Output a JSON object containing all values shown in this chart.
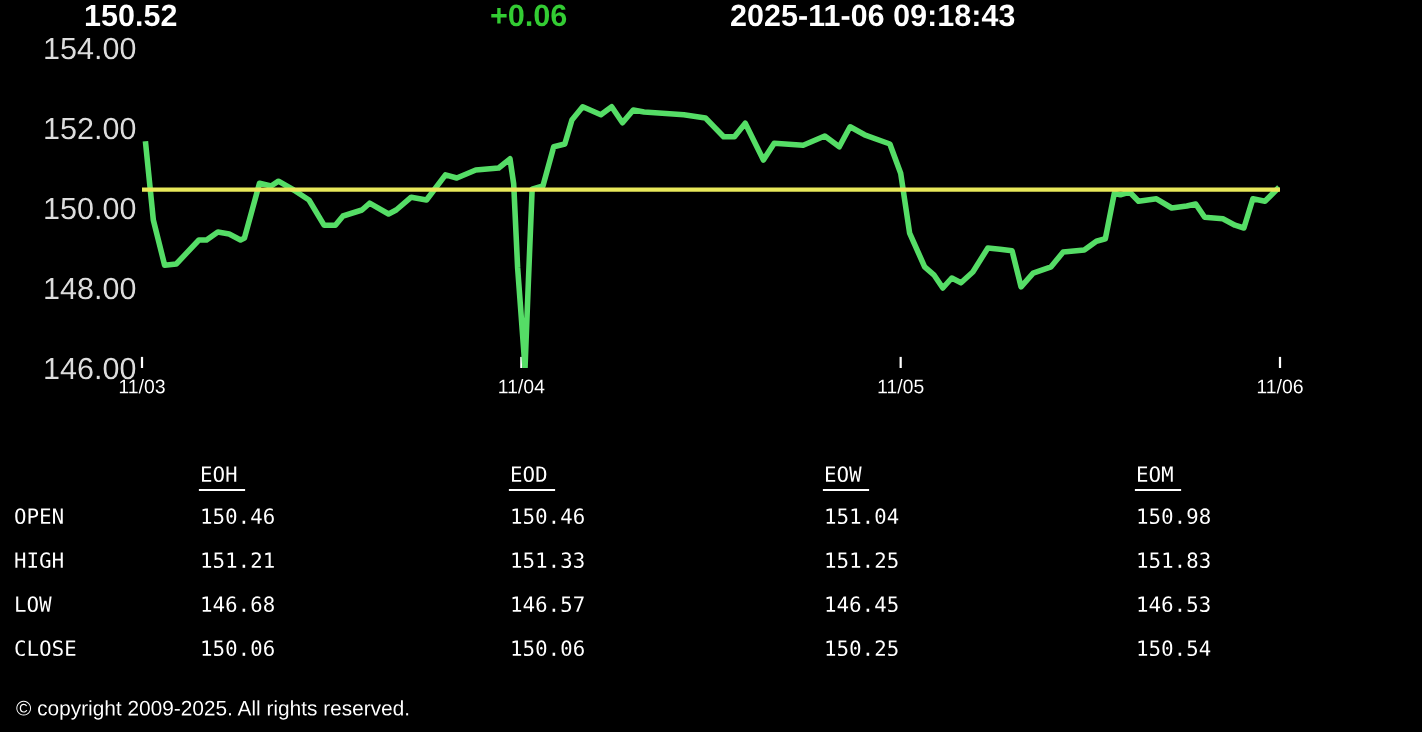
{
  "chart_data": [
    {
      "type": "line",
      "title": "150.52",
      "subtitle": "2025-11-06 09:18:43",
      "annotations": [
        "+0.06",
        "© copyright 2009-2025. All rights reserved."
      ],
      "x": [
        "2025-11-03T00:14",
        "2025-11-03T00:43",
        "2025-11-03T01:26",
        "2025-11-03T02:10",
        "2025-11-03T03:36",
        "2025-11-03T04:05",
        "2025-11-03T04:48",
        "2025-11-03T05:31",
        "2025-11-03T06:14",
        "2025-11-03T06:29",
        "2025-11-03T07:26",
        "2025-11-03T08:10",
        "2025-11-03T08:38",
        "2025-11-03T09:36",
        "2025-11-03T10:34",
        "2025-11-03T11:31",
        "2025-11-03T12:14",
        "2025-11-03T12:43",
        "2025-11-03T13:55",
        "2025-11-03T14:24",
        "2025-11-03T15:36",
        "2025-11-03T16:05",
        "2025-11-03T17:02",
        "2025-11-03T18:00",
        "2025-11-03T19:12",
        "2025-11-03T19:55",
        "2025-11-03T21:07",
        "2025-11-03T22:34",
        "2025-11-03T23:17",
        "2025-11-03T23:31",
        "2025-11-03T23:46",
        "2025-11-04T00:14",
        "2025-11-04T00:27",
        "2025-11-04T00:41",
        "2025-11-04T01:22",
        "2025-11-04T02:03",
        "2025-11-04T02:45",
        "2025-11-04T03:12",
        "2025-11-04T03:53",
        "2025-11-04T05:02",
        "2025-11-04T05:43",
        "2025-11-04T06:24",
        "2025-11-04T07:05",
        "2025-11-04T07:46",
        "2025-11-04T08:55",
        "2025-11-04T10:17",
        "2025-11-04T11:39",
        "2025-11-04T12:48",
        "2025-11-04T13:29",
        "2025-11-04T14:10",
        "2025-11-04T15:19",
        "2025-11-04T16:00",
        "2025-11-04T17:50",
        "2025-11-04T19:12",
        "2025-11-04T20:07",
        "2025-11-04T20:48",
        "2025-11-04T21:43",
        "2025-11-04T23:19",
        "2025-11-05T00:00",
        "2025-11-05T00:34",
        "2025-11-05T01:31",
        "2025-11-05T02:06",
        "2025-11-05T02:40",
        "2025-11-05T03:14",
        "2025-11-05T03:49",
        "2025-11-05T04:34",
        "2025-11-05T05:31",
        "2025-11-05T06:17",
        "2025-11-05T07:03",
        "2025-11-05T07:37",
        "2025-11-05T08:23",
        "2025-11-05T09:31",
        "2025-11-05T10:17",
        "2025-11-05T11:37",
        "2025-11-05T12:23",
        "2025-11-05T12:57",
        "2025-11-05T13:31",
        "2025-11-05T13:54",
        "2025-11-05T14:29",
        "2025-11-05T15:03",
        "2025-11-05T16:11",
        "2025-11-05T17:09",
        "2025-11-05T18:06",
        "2025-11-05T18:40",
        "2025-11-05T19:14",
        "2025-11-05T20:23",
        "2025-11-05T21:09",
        "2025-11-05T21:43",
        "2025-11-05T22:17",
        "2025-11-05T23:03",
        "2025-11-05T23:49"
      ],
      "series": [
        {
          "color": "#55dd66",
          "values": [
            151.6,
            149.7,
            148.57,
            148.6,
            149.2,
            149.2,
            149.4,
            149.35,
            149.2,
            149.25,
            150.62,
            150.55,
            150.67,
            150.45,
            150.2,
            149.57,
            149.57,
            149.8,
            149.95,
            150.12,
            149.85,
            149.95,
            150.27,
            150.2,
            150.83,
            150.75,
            150.95,
            151.0,
            151.23,
            150.6,
            148.5,
            146.0,
            148.2,
            150.47,
            150.55,
            151.53,
            151.6,
            152.2,
            152.53,
            152.33,
            152.53,
            152.13,
            152.45,
            152.4,
            152.37,
            152.33,
            152.25,
            151.78,
            151.78,
            152.12,
            151.2,
            151.62,
            151.57,
            151.8,
            151.53,
            152.03,
            151.83,
            151.6,
            150.87,
            149.37,
            148.53,
            148.33,
            148.0,
            148.25,
            148.13,
            148.4,
            149.0,
            148.97,
            148.93,
            148.03,
            148.37,
            148.53,
            148.9,
            148.95,
            149.17,
            149.23,
            150.37,
            150.33,
            150.4,
            150.17,
            150.23,
            150.0,
            150.05,
            150.1,
            149.77,
            149.73,
            149.57,
            149.5,
            150.23,
            150.17,
            150.47
          ]
        }
      ],
      "xlim": [
        "2025-11-03T00:00",
        "2025-11-06T00:00"
      ],
      "xticks": [
        {
          "value": "2025-11-03",
          "label": "11/03"
        },
        {
          "value": "2025-11-04",
          "label": "11/04"
        },
        {
          "value": "2025-11-05",
          "label": "11/05"
        },
        {
          "value": "2025-11-06",
          "label": "11/06"
        }
      ],
      "ylim": [
        146,
        154
      ],
      "yticks": [
        {
          "value": 146,
          "label": "146.00"
        },
        {
          "value": 148,
          "label": "148.00"
        },
        {
          "value": 150,
          "label": "150.00"
        },
        {
          "value": 152,
          "label": "152.00"
        },
        {
          "value": 154,
          "label": "154.00"
        }
      ],
      "ref_lines": [
        {
          "axis": "y",
          "value": 150.46,
          "color": "#e8e85a"
        }
      ],
      "grid": false,
      "legend": false
    },
    {
      "type": "other",
      "categories": [
        "EOH",
        "EOD",
        "EOW",
        "EOM"
      ],
      "y_categories": [
        "OPEN",
        "HIGH",
        "LOW",
        "CLOSE"
      ],
      "cell_labels": [
        [
          "150.46",
          "150.46",
          "151.04",
          "150.98"
        ],
        [
          "151.21",
          "151.33",
          "151.25",
          "151.83"
        ],
        [
          "146.68",
          "146.57",
          "146.45",
          "146.53"
        ],
        [
          "150.06",
          "150.06",
          "150.25",
          "150.54"
        ]
      ]
    }
  ]
}
